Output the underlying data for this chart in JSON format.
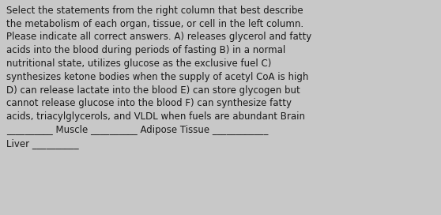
{
  "background_color": "#c8c8c8",
  "text_color": "#1a1a1a",
  "font_size": 8.5,
  "font_family": "DejaVu Sans",
  "line1": "Select the statements from the right column that best describe",
  "line2": "the metabolism of each organ, tissue, or cell in the left column.",
  "line3": "Please indicate all correct answers. A) releases glycerol and fatty",
  "line4": "acids into the blood during periods of fasting B) in a normal",
  "line5": "nutritional state, utilizes glucose as the exclusive fuel C)",
  "line6": "synthesizes ketone bodies when the supply of acetyl CoA is high",
  "line7": "D) can release lactate into the blood E) can store glycogen but",
  "line8": "cannot release glucose into the blood F) can synthesize fatty",
  "line9": "acids, triacylglycerols, and VLDL when fuels are abundant Brain",
  "line10": "__________ Muscle __________ Adipose Tissue ____________",
  "line11": "Liver __________"
}
